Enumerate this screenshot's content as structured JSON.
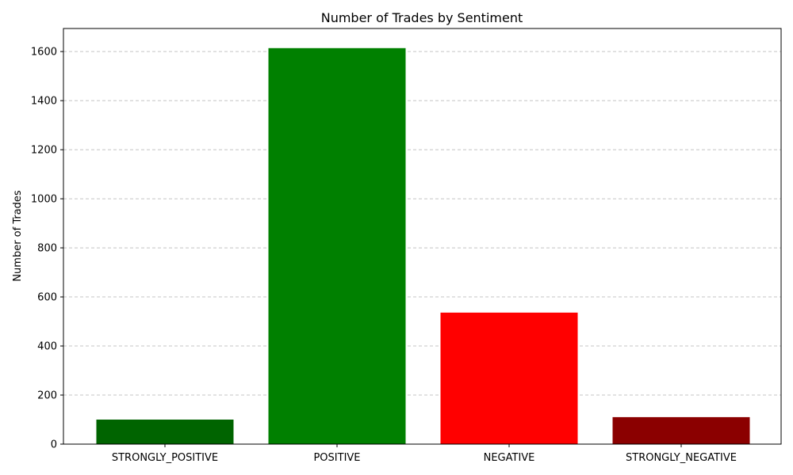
{
  "chart_data": {
    "type": "bar",
    "title": "Number of Trades by Sentiment",
    "xlabel": "",
    "ylabel": "Number of Trades",
    "categories": [
      "STRONGLY_POSITIVE",
      "POSITIVE",
      "NEGATIVE",
      "STRONGLY_NEGATIVE"
    ],
    "values": [
      100,
      1614,
      536,
      110
    ],
    "colors": [
      "#006400",
      "#008000",
      "#ff0000",
      "#8b0000"
    ],
    "ylim": [
      0,
      1694
    ],
    "yticks": [
      0,
      200,
      400,
      600,
      800,
      1000,
      1200,
      1400,
      1600
    ],
    "grid": "y-dashed",
    "legend": "none"
  }
}
